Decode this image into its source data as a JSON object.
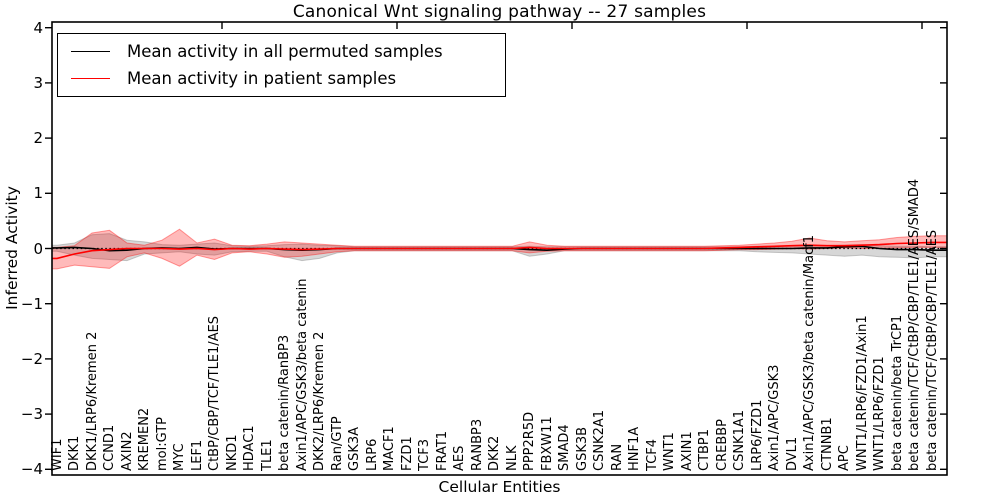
{
  "chart_data": {
    "type": "line",
    "title": "Canonical Wnt signaling pathway -- 27 samples",
    "xlabel": "Cellular Entities",
    "ylabel": "Inferred Activity",
    "ylim": [
      -4,
      4
    ],
    "grid": false,
    "legend_position": "upper left",
    "zero_line_style": "dotted",
    "yticks": [
      4,
      3,
      2,
      1,
      0,
      -1,
      -2,
      -3,
      -4
    ],
    "ytick_labels": [
      "4",
      "3",
      "2",
      "1",
      "0",
      "−1",
      "−2",
      "−3",
      "−4"
    ],
    "categories": [
      "WIF1",
      "DKK1",
      "DKK1/LRP6/Kremen 2",
      "CCND1",
      "AXIN2",
      "KREMEN2",
      "mol:GTP",
      "MYC",
      "LEF1",
      "CtBP/CBP/TCF/TLE1/AES",
      "NKD1",
      "HDAC1",
      "TLE1",
      "beta catenin/RanBP3",
      "Axin1/APC/GSK3/beta catenin",
      "DKK2/LRP6/Kremen 2",
      "Ran/GTP",
      "GSK3A",
      "LRP6",
      "MACF1",
      "FZD1",
      "TCF3",
      "FRAT1",
      "AES",
      "RANBP3",
      "DKK2",
      "NLK",
      "PPP2R5D",
      "FBXW11",
      "SMAD4",
      "GSK3B",
      "CSNK2A1",
      "RAN",
      "HNF1A",
      "TCF4",
      "WNT1",
      "AXIN1",
      "CTBP1",
      "CREBBP",
      "CSNK1A1",
      "LRP6/FZD1",
      "Axin1/APC/GSK3",
      "DVL1",
      "Axin1/APC/GSK3/beta catenin/Macf1",
      "CTNNB1",
      "APC",
      "WNT1/LRP6/FZD1/Axin1",
      "WNT1/LRP6/FZD1",
      "beta catenin/beta TrCP1",
      "beta catenin/TCF/CtBP/CBP/TLE1/AES/SMAD4",
      "beta catenin/TCF/CtBP/CBP/TLE1/AES"
    ],
    "series": [
      {
        "name": "Mean activity in all permuted samples",
        "color": "#000000",
        "band_fill": "rgba(110,110,110,0.28)",
        "band_edge": "rgba(110,110,110,0.35)",
        "values": [
          0.01,
          0.02,
          0.0,
          -0.04,
          -0.03,
          0.0,
          0.01,
          0.0,
          0.02,
          -0.01,
          0.0,
          0.0,
          0.0,
          -0.02,
          -0.03,
          -0.02,
          0.0,
          0.0,
          0.0,
          0.0,
          0.0,
          0.0,
          0.0,
          0.0,
          0.0,
          0.0,
          0.0,
          -0.02,
          -0.03,
          -0.01,
          0.0,
          0.0,
          0.0,
          0.0,
          0.0,
          0.0,
          0.0,
          0.0,
          0.0,
          0.0,
          0.0,
          0.0,
          0.0,
          0.01,
          0.01,
          0.03,
          0.04,
          0.0,
          -0.02,
          -0.02,
          -0.03
        ],
        "band_high": [
          0.06,
          0.1,
          0.25,
          0.27,
          0.15,
          0.12,
          0.07,
          0.06,
          0.08,
          0.1,
          0.05,
          0.04,
          0.05,
          0.07,
          0.08,
          0.06,
          0.05,
          0.03,
          0.03,
          0.03,
          0.03,
          0.03,
          0.03,
          0.03,
          0.03,
          0.03,
          0.03,
          0.04,
          0.03,
          0.03,
          0.03,
          0.03,
          0.03,
          0.03,
          0.03,
          0.03,
          0.03,
          0.03,
          0.03,
          0.03,
          0.04,
          0.04,
          0.05,
          0.05,
          0.05,
          0.06,
          0.07,
          0.05,
          0.04,
          0.04,
          0.03
        ],
        "band_low": [
          -0.05,
          -0.12,
          -0.18,
          -0.2,
          -0.22,
          -0.1,
          -0.08,
          -0.06,
          -0.1,
          -0.12,
          -0.06,
          -0.05,
          -0.05,
          -0.15,
          -0.22,
          -0.18,
          -0.08,
          -0.04,
          -0.04,
          -0.04,
          -0.04,
          -0.04,
          -0.04,
          -0.04,
          -0.04,
          -0.04,
          -0.04,
          -0.14,
          -0.1,
          -0.04,
          -0.04,
          -0.04,
          -0.04,
          -0.04,
          -0.04,
          -0.04,
          -0.04,
          -0.04,
          -0.04,
          -0.04,
          -0.06,
          -0.07,
          -0.08,
          -0.1,
          -0.12,
          -0.14,
          -0.12,
          -0.15,
          -0.16,
          -0.17,
          -0.15
        ]
      },
      {
        "name": "Mean activity in patient samples",
        "color": "#ff0000",
        "band_fill": "rgba(255,0,0,0.27)",
        "band_edge": "rgba(255,0,0,0.38)",
        "values": [
          -0.18,
          -0.1,
          -0.04,
          -0.02,
          0.0,
          0.0,
          0.0,
          -0.01,
          0.0,
          -0.02,
          0.0,
          -0.01,
          0.0,
          -0.01,
          -0.02,
          -0.01,
          0.0,
          0.0,
          0.0,
          0.0,
          0.0,
          0.0,
          0.0,
          0.0,
          0.0,
          0.0,
          0.0,
          0.02,
          0.0,
          0.0,
          0.0,
          0.0,
          0.0,
          0.0,
          0.0,
          0.0,
          0.0,
          0.0,
          0.01,
          0.02,
          0.03,
          0.04,
          0.05,
          0.06,
          0.05,
          0.05,
          0.06,
          0.07,
          0.09,
          0.1,
          0.11
        ],
        "band_high": [
          0.02,
          0.05,
          0.28,
          0.33,
          0.1,
          0.06,
          0.15,
          0.35,
          0.1,
          0.17,
          0.06,
          0.05,
          0.08,
          0.12,
          0.1,
          0.08,
          0.06,
          0.04,
          0.04,
          0.04,
          0.04,
          0.04,
          0.04,
          0.04,
          0.04,
          0.04,
          0.04,
          0.12,
          0.06,
          0.04,
          0.04,
          0.04,
          0.04,
          0.04,
          0.04,
          0.04,
          0.04,
          0.04,
          0.05,
          0.06,
          0.08,
          0.1,
          0.13,
          0.19,
          0.14,
          0.12,
          0.14,
          0.16,
          0.2,
          0.22,
          0.23
        ],
        "band_low": [
          -0.37,
          -0.3,
          -0.33,
          -0.36,
          -0.15,
          -0.08,
          -0.18,
          -0.32,
          -0.12,
          -0.2,
          -0.08,
          -0.06,
          -0.1,
          -0.16,
          -0.14,
          -0.1,
          -0.06,
          -0.04,
          -0.04,
          -0.04,
          -0.04,
          -0.04,
          -0.04,
          -0.04,
          -0.04,
          -0.04,
          -0.04,
          -0.08,
          -0.05,
          -0.04,
          -0.04,
          -0.04,
          -0.04,
          -0.04,
          -0.04,
          -0.04,
          -0.04,
          -0.04,
          -0.03,
          -0.02,
          -0.02,
          -0.01,
          0.0,
          -0.01,
          0.0,
          0.01,
          0.0,
          0.0,
          0.01,
          0.02,
          0.02
        ]
      }
    ]
  }
}
